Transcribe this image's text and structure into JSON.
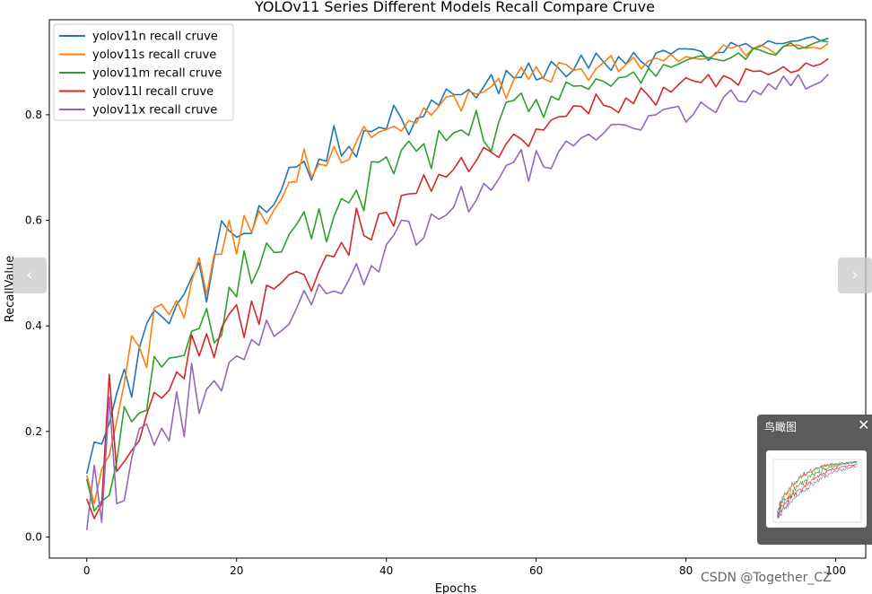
{
  "chart_data": {
    "type": "line",
    "title": "YOLOv11 Series Different Models Recall Compare Cruve",
    "xlabel": "Epochs",
    "ylabel": "RecallValue",
    "xlim": [
      -5,
      104
    ],
    "ylim": [
      -0.04,
      0.98
    ],
    "xticks": [
      0,
      20,
      40,
      60,
      80,
      100
    ],
    "yticks": [
      0.0,
      0.2,
      0.4,
      0.6,
      0.8
    ],
    "grid": false,
    "legend_position": "top-left",
    "x": [
      0,
      1,
      2,
      3,
      4,
      5,
      6,
      7,
      8,
      9,
      10,
      11,
      12,
      13,
      14,
      15,
      16,
      17,
      18,
      19,
      20,
      21,
      22,
      23,
      24,
      25,
      26,
      27,
      28,
      29,
      30,
      31,
      32,
      33,
      34,
      35,
      36,
      37,
      38,
      39,
      40,
      41,
      42,
      43,
      44,
      45,
      46,
      47,
      48,
      49,
      50,
      51,
      52,
      53,
      54,
      55,
      56,
      57,
      58,
      59,
      60,
      61,
      62,
      63,
      64,
      65,
      66,
      67,
      68,
      69,
      70,
      71,
      72,
      73,
      74,
      75,
      76,
      77,
      78,
      79,
      80,
      81,
      82,
      83,
      84,
      85,
      86,
      87,
      88,
      89,
      90,
      91,
      92,
      93,
      94,
      95,
      96,
      97,
      98,
      99
    ],
    "series": [
      {
        "name": "yolov11n recall cruve",
        "color": "#1f77b4",
        "values": [
          0.12,
          0.18,
          0.176,
          0.215,
          0.272,
          0.318,
          0.265,
          0.358,
          0.404,
          0.43,
          0.418,
          0.404,
          0.44,
          0.46,
          0.492,
          0.52,
          0.445,
          0.528,
          0.599,
          0.58,
          0.568,
          0.575,
          0.575,
          0.628,
          0.615,
          0.63,
          0.658,
          0.7,
          0.701,
          0.712,
          0.676,
          0.716,
          0.712,
          0.779,
          0.722,
          0.74,
          0.72,
          0.77,
          0.768,
          0.776,
          0.773,
          0.818,
          0.793,
          0.762,
          0.793,
          0.797,
          0.828,
          0.818,
          0.849,
          0.838,
          0.838,
          0.848,
          0.832,
          0.853,
          0.876,
          0.84,
          0.884,
          0.87,
          0.871,
          0.898,
          0.866,
          0.871,
          0.901,
          0.888,
          0.872,
          0.885,
          0.913,
          0.888,
          0.917,
          0.9,
          0.884,
          0.91,
          0.896,
          0.918,
          0.901,
          0.89,
          0.917,
          0.922,
          0.915,
          0.925,
          0.925,
          0.924,
          0.92,
          0.903,
          0.918,
          0.918,
          0.937,
          0.93,
          0.935,
          0.925,
          0.93,
          0.94,
          0.935,
          0.935,
          0.939,
          0.94,
          0.945,
          0.948,
          0.94,
          0.945
        ]
      },
      {
        "name": "yolov11s recall cruve",
        "color": "#ff7f0e",
        "values": [
          0.117,
          0.063,
          0.129,
          0.155,
          0.219,
          0.291,
          0.381,
          0.36,
          0.321,
          0.434,
          0.441,
          0.421,
          0.448,
          0.415,
          0.484,
          0.529,
          0.459,
          0.535,
          0.536,
          0.6,
          0.536,
          0.609,
          0.577,
          0.618,
          0.593,
          0.62,
          0.64,
          0.672,
          0.673,
          0.735,
          0.681,
          0.707,
          0.703,
          0.74,
          0.709,
          0.715,
          0.749,
          0.778,
          0.757,
          0.767,
          0.772,
          0.778,
          0.769,
          0.789,
          0.784,
          0.813,
          0.799,
          0.816,
          0.834,
          0.836,
          0.807,
          0.845,
          0.839,
          0.843,
          0.853,
          0.869,
          0.831,
          0.866,
          0.89,
          0.867,
          0.891,
          0.868,
          0.862,
          0.899,
          0.895,
          0.884,
          0.887,
          0.865,
          0.887,
          0.899,
          0.912,
          0.882,
          0.895,
          0.909,
          0.887,
          0.902,
          0.907,
          0.902,
          0.914,
          0.901,
          0.91,
          0.907,
          0.905,
          0.907,
          0.915,
          0.932,
          0.926,
          0.931,
          0.912,
          0.926,
          0.932,
          0.925,
          0.915,
          0.93,
          0.931,
          0.932,
          0.926,
          0.928,
          0.925,
          0.935
        ]
      },
      {
        "name": "yolov11m recall cruve",
        "color": "#2ca02c",
        "values": [
          0.11,
          0.049,
          0.068,
          0.079,
          0.142,
          0.247,
          0.218,
          0.235,
          0.24,
          0.342,
          0.322,
          0.339,
          0.341,
          0.344,
          0.39,
          0.395,
          0.433,
          0.368,
          0.382,
          0.473,
          0.455,
          0.542,
          0.48,
          0.511,
          0.557,
          0.539,
          0.54,
          0.573,
          0.592,
          0.616,
          0.565,
          0.622,
          0.559,
          0.607,
          0.641,
          0.633,
          0.657,
          0.618,
          0.711,
          0.71,
          0.72,
          0.688,
          0.733,
          0.75,
          0.731,
          0.745,
          0.698,
          0.77,
          0.751,
          0.766,
          0.771,
          0.761,
          0.808,
          0.75,
          0.731,
          0.786,
          0.824,
          0.827,
          0.841,
          0.806,
          0.829,
          0.795,
          0.835,
          0.828,
          0.862,
          0.854,
          0.855,
          0.848,
          0.868,
          0.863,
          0.854,
          0.87,
          0.872,
          0.881,
          0.86,
          0.888,
          0.873,
          0.895,
          0.89,
          0.896,
          0.903,
          0.908,
          0.912,
          0.908,
          0.905,
          0.902,
          0.908,
          0.917,
          0.905,
          0.926,
          0.922,
          0.916,
          0.913,
          0.929,
          0.936,
          0.925,
          0.928,
          0.935,
          0.94,
          0.938
        ]
      },
      {
        "name": "yolov11l recall cruve",
        "color": "#d62728",
        "values": [
          0.072,
          0.035,
          0.063,
          0.308,
          0.124,
          0.143,
          0.164,
          0.182,
          0.232,
          0.274,
          0.263,
          0.278,
          0.313,
          0.3,
          0.383,
          0.343,
          0.385,
          0.34,
          0.397,
          0.422,
          0.44,
          0.378,
          0.447,
          0.403,
          0.477,
          0.47,
          0.482,
          0.497,
          0.503,
          0.497,
          0.466,
          0.504,
          0.534,
          0.531,
          0.558,
          0.534,
          0.623,
          0.571,
          0.563,
          0.612,
          0.615,
          0.589,
          0.647,
          0.65,
          0.651,
          0.686,
          0.655,
          0.687,
          0.682,
          0.697,
          0.719,
          0.692,
          0.713,
          0.738,
          0.729,
          0.719,
          0.745,
          0.763,
          0.754,
          0.74,
          0.773,
          0.771,
          0.79,
          0.796,
          0.797,
          0.817,
          0.816,
          0.802,
          0.839,
          0.818,
          0.814,
          0.804,
          0.832,
          0.821,
          0.851,
          0.836,
          0.818,
          0.852,
          0.843,
          0.857,
          0.87,
          0.864,
          0.861,
          0.876,
          0.853,
          0.874,
          0.868,
          0.856,
          0.887,
          0.882,
          0.883,
          0.876,
          0.882,
          0.891,
          0.88,
          0.884,
          0.898,
          0.892,
          0.896,
          0.906
        ]
      },
      {
        "name": "yolov11x recall cruve",
        "color": "#9467bd",
        "values": [
          0.013,
          0.136,
          0.028,
          0.265,
          0.063,
          0.069,
          0.15,
          0.205,
          0.214,
          0.174,
          0.206,
          0.182,
          0.275,
          0.19,
          0.329,
          0.234,
          0.28,
          0.296,
          0.277,
          0.331,
          0.343,
          0.336,
          0.374,
          0.363,
          0.411,
          0.38,
          0.391,
          0.403,
          0.433,
          0.467,
          0.44,
          0.479,
          0.461,
          0.466,
          0.461,
          0.487,
          0.518,
          0.478,
          0.514,
          0.502,
          0.554,
          0.572,
          0.6,
          0.598,
          0.553,
          0.567,
          0.612,
          0.602,
          0.61,
          0.625,
          0.664,
          0.616,
          0.638,
          0.67,
          0.657,
          0.678,
          0.704,
          0.71,
          0.734,
          0.674,
          0.732,
          0.701,
          0.698,
          0.73,
          0.75,
          0.741,
          0.756,
          0.763,
          0.752,
          0.765,
          0.781,
          0.782,
          0.78,
          0.774,
          0.771,
          0.798,
          0.8,
          0.81,
          0.813,
          0.816,
          0.786,
          0.801,
          0.824,
          0.813,
          0.804,
          0.833,
          0.847,
          0.826,
          0.824,
          0.846,
          0.838,
          0.859,
          0.848,
          0.873,
          0.855,
          0.876,
          0.849,
          0.856,
          0.862,
          0.877
        ]
      }
    ]
  },
  "overlay": {
    "nav_prev_symbol": "‹",
    "nav_next_symbol": "›",
    "birdseye_title": "鸟瞰图",
    "birdseye_close_symbol": "✕",
    "watermark": "CSDN @Together_CZ"
  }
}
